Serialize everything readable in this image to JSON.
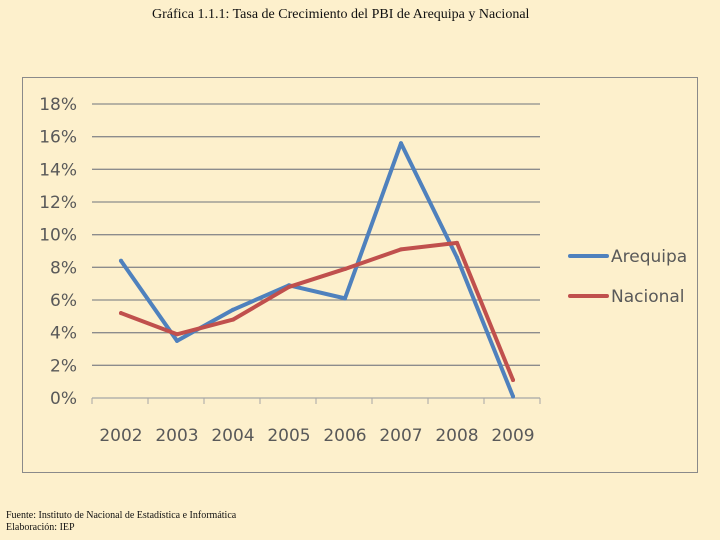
{
  "title": "Gráfica 1.1.1: Tasa de Crecimiento del PBI de Arequipa y Nacional",
  "footer": {
    "source": "Fuente: Instituto de Nacional de Estadística e Informática",
    "credit": "Elaboración: IEP"
  },
  "chart_data": {
    "type": "line",
    "title": "",
    "xlabel": "",
    "ylabel": "",
    "x": [
      "2002",
      "2003",
      "2004",
      "2005",
      "2006",
      "2007",
      "2008",
      "2009"
    ],
    "ylim": [
      0,
      18
    ],
    "yticks": [
      "0%",
      "2%",
      "4%",
      "6%",
      "8%",
      "10%",
      "12%",
      "14%",
      "16%",
      "18%"
    ],
    "grid": "horizontal",
    "legend_position": "right",
    "series": [
      {
        "name": "Arequipa",
        "color": "#4f81bd",
        "values": [
          8.4,
          3.5,
          5.4,
          6.9,
          6.1,
          15.6,
          8.6,
          0.1
        ]
      },
      {
        "name": "Nacional",
        "color": "#c0504d",
        "values": [
          5.2,
          3.9,
          4.8,
          6.8,
          7.9,
          9.1,
          9.5,
          1.1
        ]
      }
    ]
  }
}
